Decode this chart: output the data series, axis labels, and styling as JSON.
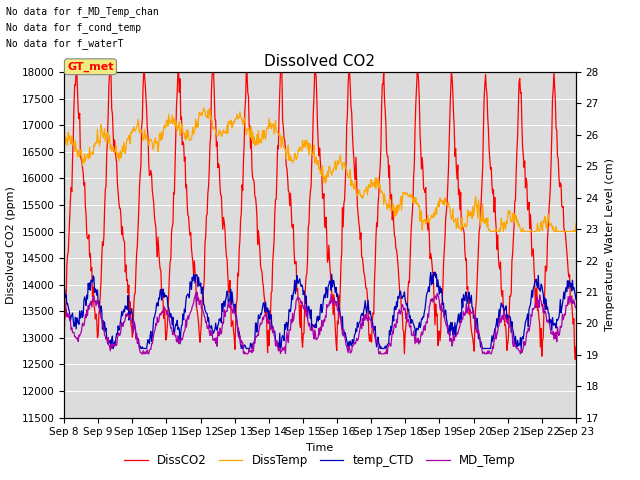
{
  "title": "Dissolved CO2",
  "xlabel": "Time",
  "ylabel_left": "Dissolved CO2 (ppm)",
  "ylabel_right": "Temperature, Water Level (cm)",
  "ylim_left": [
    11500,
    18000
  ],
  "ylim_right": [
    17.0,
    28.0
  ],
  "yticks_left": [
    11500,
    12000,
    12500,
    13000,
    13500,
    14000,
    14500,
    15000,
    15500,
    16000,
    16500,
    17000,
    17500,
    18000
  ],
  "yticks_right": [
    17.0,
    18.0,
    19.0,
    20.0,
    21.0,
    22.0,
    23.0,
    24.0,
    25.0,
    26.0,
    27.0,
    28.0
  ],
  "xtick_labels": [
    "Sep 8",
    "Sep 9",
    "Sep 10",
    "Sep 11",
    "Sep 12",
    "Sep 13",
    "Sep 14",
    "Sep 15",
    "Sep 16",
    "Sep 17",
    "Sep 18",
    "Sep 19",
    "Sep 20",
    "Sep 21",
    "Sep 22",
    "Sep 23"
  ],
  "colors": {
    "DissCO2": "#FF0000",
    "DissTemp": "#FFA500",
    "temp_CTD": "#0000BB",
    "MD_Temp": "#AA00AA"
  },
  "legend_labels": [
    "DissCO2",
    "DissTemp",
    "temp_CTD",
    "MD_Temp"
  ],
  "no_data_text": [
    "No data for f_MD_Temp_chan",
    "No data for f_cond_temp",
    "No data for f_waterT"
  ],
  "gt_met_label": "GT_met",
  "background_color": "#DCDCDC",
  "fig_background": "#FFFFFF",
  "title_fontsize": 11,
  "axis_fontsize": 8,
  "tick_fontsize": 7.5
}
